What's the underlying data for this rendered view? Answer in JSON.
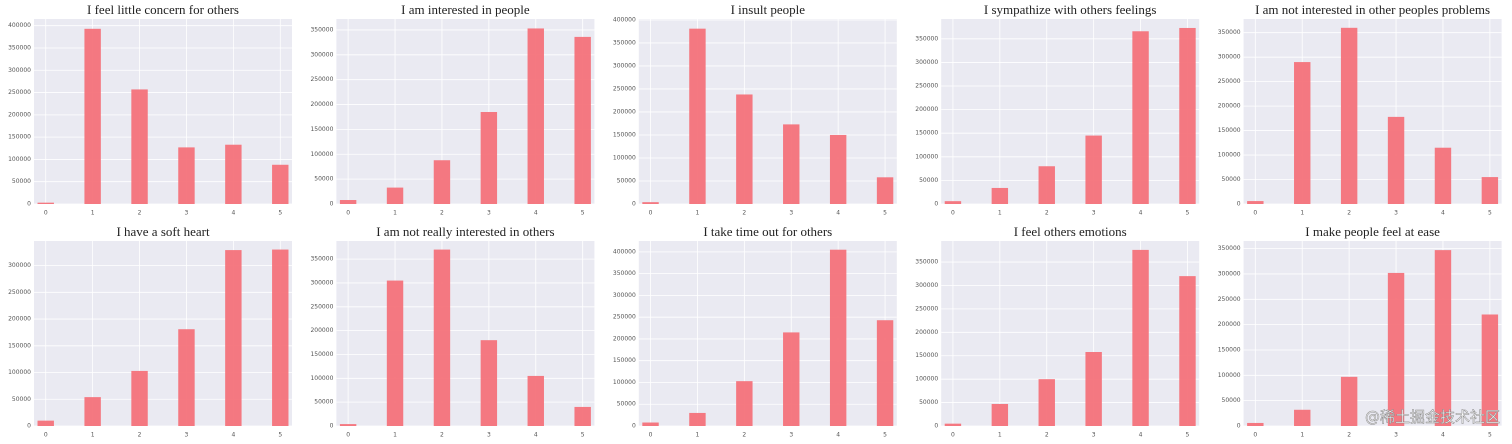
{
  "chart_data": [
    {
      "type": "bar",
      "title": "I feel little concern for others",
      "x": [
        0,
        1,
        2,
        3,
        4,
        5
      ],
      "values": [
        3000,
        393000,
        257000,
        127000,
        133000,
        88000
      ],
      "color": "#f4727a",
      "xlim": [
        -0.25,
        5.25
      ],
      "xticks": [
        0,
        1,
        2,
        3,
        4,
        5
      ],
      "ylim": [
        0,
        415000
      ],
      "yticks": [
        0,
        50000,
        100000,
        150000,
        200000,
        250000,
        300000,
        350000,
        400000
      ],
      "grid": true
    },
    {
      "type": "bar",
      "title": "I am interested in people",
      "x": [
        0,
        1,
        2,
        3,
        4,
        5
      ],
      "values": [
        8000,
        33000,
        88000,
        185000,
        353000,
        336000
      ],
      "color": "#f4727a",
      "xlim": [
        -0.25,
        5.25
      ],
      "xticks": [
        0,
        1,
        2,
        3,
        4,
        5
      ],
      "ylim": [
        0,
        372000
      ],
      "yticks": [
        0,
        50000,
        100000,
        150000,
        200000,
        250000,
        300000,
        350000
      ],
      "grid": true
    },
    {
      "type": "bar",
      "title": "I insult people",
      "x": [
        0,
        1,
        2,
        3,
        4,
        5
      ],
      "values": [
        4000,
        381000,
        238000,
        173000,
        150000,
        58000
      ],
      "color": "#f4727a",
      "xlim": [
        -0.25,
        5.25
      ],
      "xticks": [
        0,
        1,
        2,
        3,
        4,
        5
      ],
      "ylim": [
        0,
        402000
      ],
      "yticks": [
        0,
        50000,
        100000,
        150000,
        200000,
        250000,
        300000,
        350000,
        400000
      ],
      "grid": true
    },
    {
      "type": "bar",
      "title": "I sympathize with others feelings",
      "x": [
        0,
        1,
        2,
        3,
        4,
        5
      ],
      "values": [
        6000,
        34000,
        80000,
        145000,
        366000,
        373000
      ],
      "color": "#f4727a",
      "xlim": [
        -0.25,
        5.25
      ],
      "xticks": [
        0,
        1,
        2,
        3,
        4,
        5
      ],
      "ylim": [
        0,
        392000
      ],
      "yticks": [
        0,
        50000,
        100000,
        150000,
        200000,
        250000,
        300000,
        350000
      ],
      "grid": true
    },
    {
      "type": "bar",
      "title": "I am not interested in other peoples problems",
      "x": [
        0,
        1,
        2,
        3,
        4,
        5
      ],
      "values": [
        6000,
        290000,
        360000,
        178000,
        115000,
        55000
      ],
      "color": "#f4727a",
      "xlim": [
        -0.25,
        5.25
      ],
      "xticks": [
        0,
        1,
        2,
        3,
        4,
        5
      ],
      "ylim": [
        0,
        378000
      ],
      "yticks": [
        0,
        50000,
        100000,
        150000,
        200000,
        250000,
        300000,
        350000
      ],
      "grid": true
    },
    {
      "type": "bar",
      "title": "I have a soft heart",
      "x": [
        0,
        1,
        2,
        3,
        4,
        5
      ],
      "values": [
        10000,
        54000,
        103000,
        181000,
        329000,
        330000
      ],
      "color": "#f4727a",
      "xlim": [
        -0.25,
        5.25
      ],
      "xticks": [
        0,
        1,
        2,
        3,
        4,
        5
      ],
      "ylim": [
        0,
        346000
      ],
      "yticks": [
        0,
        50000,
        100000,
        150000,
        200000,
        250000,
        300000
      ],
      "grid": true
    },
    {
      "type": "bar",
      "title": "I am not really interested in others",
      "x": [
        0,
        1,
        2,
        3,
        4,
        5
      ],
      "values": [
        4000,
        305000,
        370000,
        180000,
        105000,
        40000
      ],
      "color": "#f4727a",
      "xlim": [
        -0.25,
        5.25
      ],
      "xticks": [
        0,
        1,
        2,
        3,
        4,
        5
      ],
      "ylim": [
        0,
        388000
      ],
      "yticks": [
        0,
        50000,
        100000,
        150000,
        200000,
        250000,
        300000,
        350000
      ],
      "grid": true
    },
    {
      "type": "bar",
      "title": "I take time out for others",
      "x": [
        0,
        1,
        2,
        3,
        4,
        5
      ],
      "values": [
        8000,
        30000,
        103000,
        215000,
        405000,
        243000
      ],
      "color": "#f4727a",
      "xlim": [
        -0.25,
        5.25
      ],
      "xticks": [
        0,
        1,
        2,
        3,
        4,
        5
      ],
      "ylim": [
        0,
        425000
      ],
      "yticks": [
        0,
        50000,
        100000,
        150000,
        200000,
        250000,
        300000,
        350000,
        400000
      ],
      "grid": true
    },
    {
      "type": "bar",
      "title": "I feel others emotions",
      "x": [
        0,
        1,
        2,
        3,
        4,
        5
      ],
      "values": [
        5000,
        47000,
        100000,
        158000,
        376000,
        320000
      ],
      "color": "#f4727a",
      "xlim": [
        -0.25,
        5.25
      ],
      "xticks": [
        0,
        1,
        2,
        3,
        4,
        5
      ],
      "ylim": [
        0,
        395000
      ],
      "yticks": [
        0,
        50000,
        100000,
        150000,
        200000,
        250000,
        300000,
        350000
      ],
      "grid": true
    },
    {
      "type": "bar",
      "title": "I make people feel at ease",
      "x": [
        0,
        1,
        2,
        3,
        4,
        5
      ],
      "values": [
        6000,
        32000,
        97000,
        302000,
        347000,
        220000
      ],
      "color": "#f4727a",
      "xlim": [
        -0.25,
        5.25
      ],
      "xticks": [
        0,
        1,
        2,
        3,
        4,
        5
      ],
      "ylim": [
        0,
        365000
      ],
      "yticks": [
        0,
        50000,
        100000,
        150000,
        200000,
        250000,
        300000,
        350000
      ],
      "grid": true
    }
  ],
  "watermark": "@稀土掘金技术社区"
}
